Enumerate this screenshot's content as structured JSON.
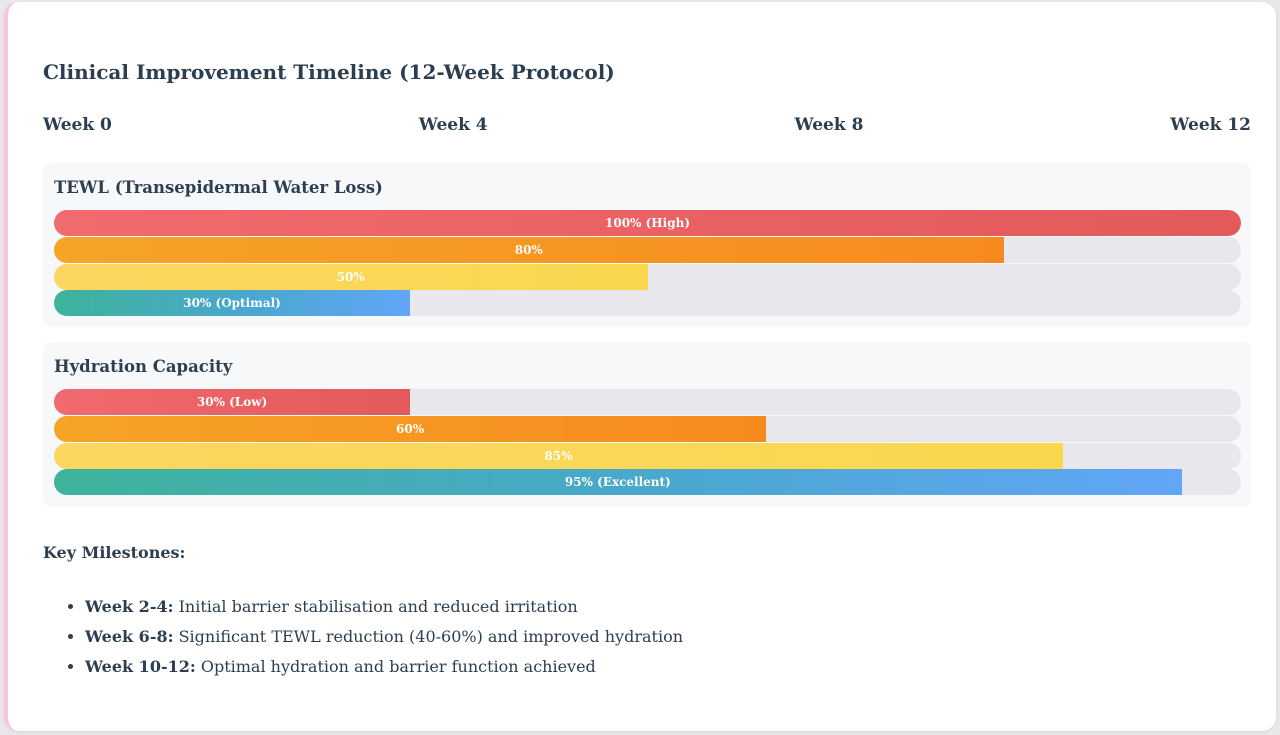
{
  "chart_data": {
    "type": "bar",
    "title": "Clinical Improvement Timeline (12-Week Protocol)",
    "timeline": [
      "Week 0",
      "Week 4",
      "Week 8",
      "Week 12"
    ],
    "xlim": [
      0,
      100
    ],
    "series": [
      {
        "name": "TEWL (Transepidermal Water Loss)",
        "bars": [
          {
            "value": 100,
            "label": "100% (High)",
            "color": "#e85d5f"
          },
          {
            "value": 80,
            "label": "80%",
            "color": "#f6961f"
          },
          {
            "value": 50,
            "label": "50%",
            "color": "#fad652"
          },
          {
            "value": 30,
            "label": "30% (Optimal)",
            "color": "#4aa8c8"
          }
        ]
      },
      {
        "name": "Hydration Capacity",
        "bars": [
          {
            "value": 30,
            "label": "30% (Low)",
            "color": "#e85d5f"
          },
          {
            "value": 60,
            "label": "60%",
            "color": "#f6961f"
          },
          {
            "value": 85,
            "label": "85%",
            "color": "#fad652"
          },
          {
            "value": 95,
            "label": "95% (Excellent)",
            "color": "#4aa8c8"
          }
        ]
      }
    ]
  },
  "milestones": {
    "title": "Key Milestones:",
    "items": [
      {
        "week": "Week 2-4:",
        "text": " Initial barrier stabilisation and reduced irritation"
      },
      {
        "week": "Week 6-8:",
        "text": " Significant TEWL reduction (40-60%) and improved hydration"
      },
      {
        "week": "Week 10-12:",
        "text": " Optimal hydration and barrier function achieved"
      }
    ]
  }
}
